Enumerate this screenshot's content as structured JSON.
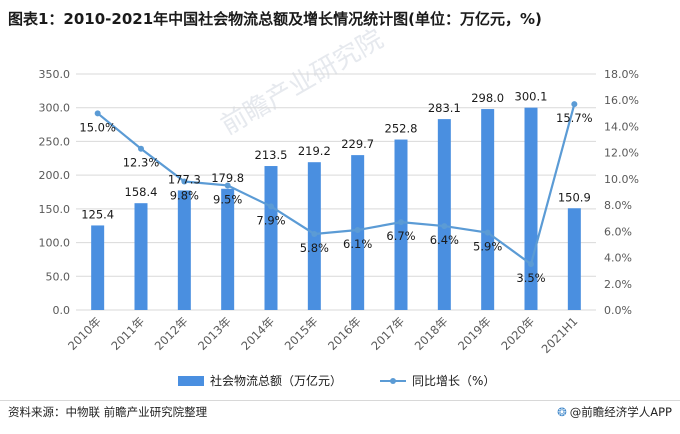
{
  "title": "图表1：2010-2021年中国社会物流总额及增长情况统计图(单位：万亿元，%)",
  "watermark": "前瞻产业研究院",
  "source": "资料来源：中物联 前瞻产业研究院整理",
  "brand": {
    "icon": "brand-logo-icon",
    "text": "@前瞻经济学人APP"
  },
  "colors": {
    "bar": "#4a8fe0",
    "line": "#5b9bd5",
    "grid": "#d9d9d9",
    "axis": "#595959"
  },
  "chart_data": {
    "type": "bar",
    "categories": [
      "2010年",
      "2011年",
      "2012年",
      "2013年",
      "2014年",
      "2015年",
      "2016年",
      "2017年",
      "2018年",
      "2019年",
      "2020年",
      "2021H1"
    ],
    "series": [
      {
        "name": "社会物流总额（万亿元）",
        "type": "bar",
        "axis": "left",
        "values": [
          125.4,
          158.4,
          177.3,
          179.8,
          213.5,
          219.2,
          229.7,
          252.8,
          283.1,
          298.0,
          300.1,
          150.9
        ],
        "labels": [
          "125.4",
          "158.4",
          "177.3",
          "179.8",
          "213.5",
          "219.2",
          "229.7",
          "252.8",
          "283.1",
          "298.0",
          "300.1",
          "150.9"
        ]
      },
      {
        "name": "同比增长（%）",
        "type": "line",
        "axis": "right",
        "values": [
          15.0,
          12.3,
          9.8,
          9.5,
          7.9,
          5.8,
          6.1,
          6.7,
          6.4,
          5.9,
          3.5,
          15.7
        ],
        "labels": [
          "15.0%",
          "12.3%",
          "9.8%",
          "9.5%",
          "7.9%",
          "5.8%",
          "6.1%",
          "6.7%",
          "6.4%",
          "5.9%",
          "3.5%",
          "15.7%"
        ]
      }
    ],
    "y_left": {
      "lim": [
        0,
        350
      ],
      "ticks": [
        "0.0",
        "50.0",
        "100.0",
        "150.0",
        "200.0",
        "250.0",
        "300.0",
        "350.0"
      ]
    },
    "y_right": {
      "lim": [
        0,
        18
      ],
      "ticks": [
        "0.0%",
        "2.0%",
        "4.0%",
        "6.0%",
        "8.0%",
        "10.0%",
        "12.0%",
        "14.0%",
        "16.0%",
        "18.0%"
      ]
    },
    "grid": true,
    "legend": "bottom"
  }
}
